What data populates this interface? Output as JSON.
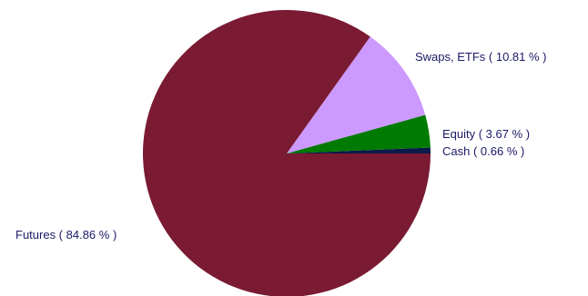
{
  "chart_data": {
    "type": "pie",
    "title": "",
    "slices": [
      {
        "name": "Cash",
        "value": 0.66,
        "label": "Cash  ( 0.66 % )",
        "color": "#0a1a4a"
      },
      {
        "name": "Equity",
        "value": 3.67,
        "label": "Equity  ( 3.67 % )",
        "color": "#007a00"
      },
      {
        "name": "Swaps, ETFs",
        "value": 10.81,
        "label": "Swaps, ETFs  ( 10.81 % )",
        "color": "#cc99ff"
      },
      {
        "name": "Futures",
        "value": 84.86,
        "label": "Futures  ( 84.86 % )",
        "color": "#7a1a33"
      }
    ]
  }
}
